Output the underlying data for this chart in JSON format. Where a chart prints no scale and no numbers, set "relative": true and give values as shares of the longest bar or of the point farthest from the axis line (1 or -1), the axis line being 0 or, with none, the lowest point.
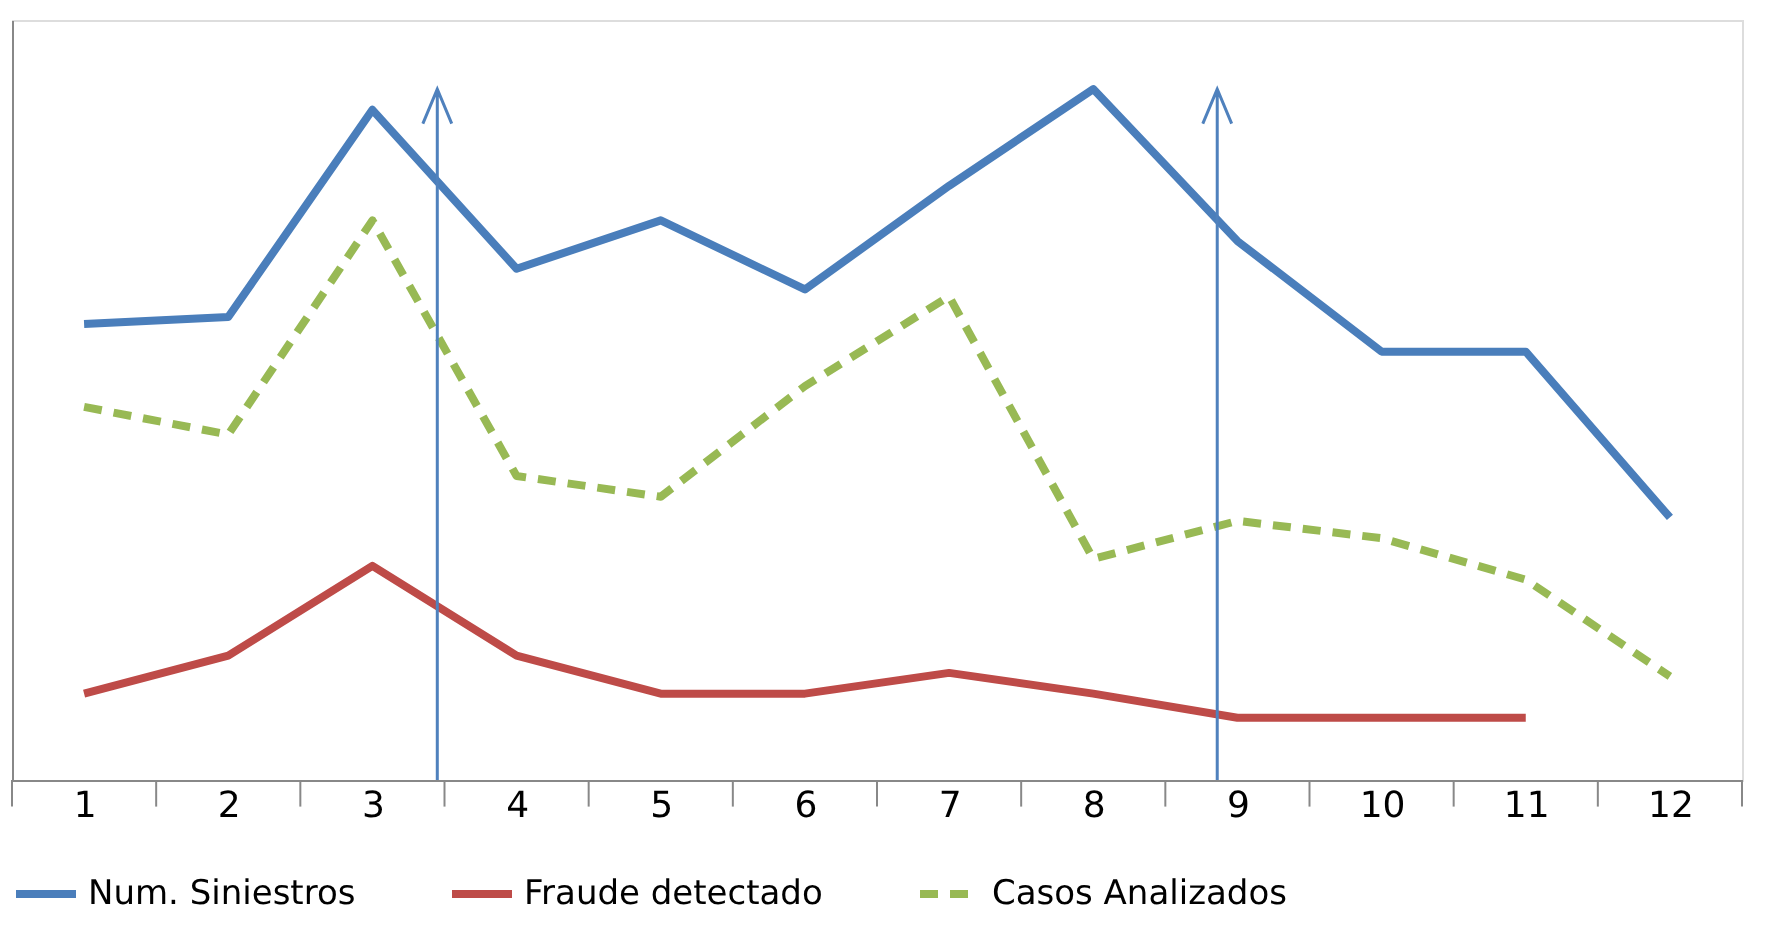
{
  "chart_data": {
    "type": "line",
    "relative": true,
    "x": [
      1,
      2,
      3,
      4,
      5,
      6,
      7,
      8,
      9,
      10,
      11,
      12
    ],
    "xlim": [
      0.5,
      12.5
    ],
    "xticks": [
      {
        "value": 0.5,
        "label": null
      },
      1,
      {
        "value": 1.5,
        "label": null
      },
      2,
      {
        "value": 2.5,
        "label": null
      },
      3,
      {
        "value": 3.5,
        "label": null
      },
      4,
      {
        "value": 4.5,
        "label": null
      },
      5,
      {
        "value": 5.5,
        "label": null
      },
      6,
      {
        "value": 6.5,
        "label": null
      },
      7,
      {
        "value": 7.5,
        "label": null
      },
      8,
      {
        "value": 8.5,
        "label": null
      },
      9,
      {
        "value": 9.5,
        "label": null
      },
      10,
      {
        "value": 10.5,
        "label": null
      },
      11,
      {
        "value": 11.5,
        "label": null
      },
      12,
      {
        "value": 12.5,
        "label": null
      }
    ],
    "series": [
      {
        "name": "Num. Siniestros",
        "color": "#4a7ebb",
        "line_style": "solid",
        "values": [
          0.66,
          0.67,
          0.97,
          0.74,
          0.81,
          0.71,
          0.86,
          1.0,
          0.78,
          0.62,
          0.62,
          0.38
        ]
      },
      {
        "name": "Fraude detectado",
        "color": "#be4b48",
        "line_style": "solid",
        "values": [
          0.125,
          0.18,
          0.31,
          0.18,
          0.125,
          0.125,
          0.155,
          0.125,
          0.09,
          0.09,
          0.09,
          null
        ]
      },
      {
        "name": "Casos Analizados",
        "color": "#98b954",
        "line_style": "dashed",
        "values": [
          0.54,
          0.5,
          0.81,
          0.44,
          0.41,
          0.57,
          0.7,
          0.32,
          0.375,
          0.35,
          0.29,
          0.15
        ]
      }
    ],
    "ref_lines": [
      {
        "axis": "x",
        "value": 3.45,
        "color": "#4f81bd",
        "line_style": "solid"
      },
      {
        "axis": "x",
        "value": 8.86,
        "color": "#4f81bd",
        "line_style": "solid"
      }
    ],
    "legend": "bottom",
    "grid": false,
    "marker": "none"
  }
}
